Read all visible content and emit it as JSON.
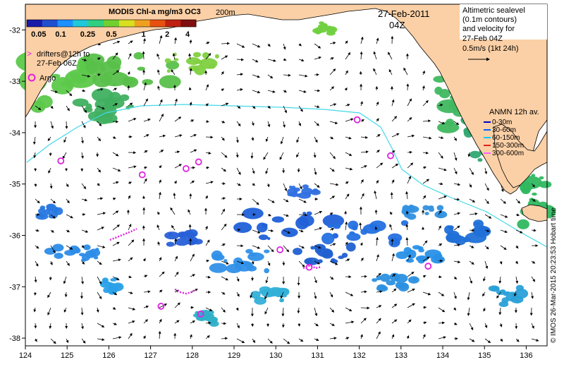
{
  "colorbar": {
    "title": "MODIS Chl-a mg/m3 OC3",
    "ticks": [
      "0.05",
      "0.1",
      "0.25",
      "0.5",
      "1",
      "2",
      "4"
    ],
    "colors": [
      "#1a1aa8",
      "#2050d0",
      "#1e90ff",
      "#20c8d8",
      "#30d080",
      "#70d030",
      "#d8e020",
      "#f0a020",
      "#e85010",
      "#c02010",
      "#801010"
    ]
  },
  "date": {
    "line1": "27-Feb-2011",
    "line2": "04Z"
  },
  "contour_label": "200m",
  "altimetry_note": [
    "Altimetric sealevel",
    "(0.1m contours)",
    "and velocity for",
    "27-Feb 04Z",
    "0.5m/s (1kt 24h)"
  ],
  "drifters_note": [
    "drifters@12h to",
    "27-Feb 06Z"
  ],
  "argo_label": "Argo",
  "anmn": {
    "title": "ANMN 12h av.",
    "items": [
      {
        "label": "0-30m",
        "color": "#0000cc"
      },
      {
        "label": "30-60m",
        "color": "#0060ff"
      },
      {
        "label": "60-150m",
        "color": "#00c8ff"
      },
      {
        "label": "150-300m",
        "color": "#e02020"
      },
      {
        "label": "300-600m",
        "color": "#ff60ff"
      }
    ]
  },
  "credit": "© IMOS 26-Mar-2015 20:23:53 Hobart time",
  "map": {
    "lon_ticks": [
      "124",
      "125",
      "126",
      "127",
      "128",
      "129",
      "130",
      "131",
      "132",
      "133",
      "134",
      "135",
      "136"
    ],
    "lat_ticks": [
      "-32",
      "-33",
      "-34",
      "-35",
      "-36",
      "-37",
      "-38"
    ],
    "lon_range": [
      124,
      136.5
    ],
    "lat_range": [
      -38.15,
      -31.5
    ],
    "land_color": "#fbd0a6",
    "argo_floats": [
      [
        124.85,
        -34.55
      ],
      [
        126.8,
        -34.82
      ],
      [
        127.85,
        -34.7
      ],
      [
        128.15,
        -34.57
      ],
      [
        131.95,
        -33.75
      ],
      [
        132.75,
        -34.45
      ],
      [
        130.1,
        -36.28
      ],
      [
        133.65,
        -36.6
      ],
      [
        127.25,
        -37.38
      ],
      [
        128.2,
        -37.53
      ],
      [
        130.8,
        -36.62
      ]
    ]
  }
}
